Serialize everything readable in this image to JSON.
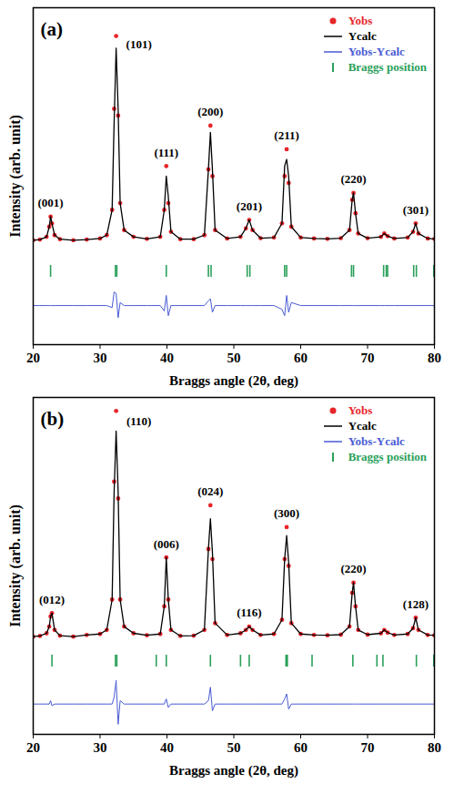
{
  "chart_data": [
    {
      "type": "line",
      "title": "(a)",
      "x_label": "Braggs angle (2θ, deg)",
      "y_label": "Intensity (arb. unit)",
      "xlim": [
        20,
        80
      ],
      "xticks": [
        20,
        30,
        40,
        50,
        60,
        70,
        80
      ],
      "ylim": [
        0,
        100
      ],
      "tick_labels": "x",
      "legend": "top-right",
      "x": [
        20,
        21,
        22,
        22.4,
        22.6,
        22.8,
        23.2,
        24,
        26,
        28,
        30,
        31,
        31.8,
        32.1,
        32.4,
        32.7,
        33,
        33.6,
        35,
        37,
        39,
        39.6,
        39.9,
        40.2,
        40.6,
        42,
        44,
        45.6,
        46.2,
        46.5,
        46.8,
        47.2,
        49,
        51,
        51.8,
        52.3,
        52.8,
        54,
        56,
        57.2,
        57.6,
        57.9,
        58.2,
        58.6,
        60,
        62,
        64,
        66,
        67.3,
        67.7,
        67.9,
        68.2,
        68.6,
        70,
        72,
        72.5,
        73,
        74,
        76,
        76.8,
        77.2,
        77.6,
        79,
        80
      ],
      "series": [
        {
          "name": "Yobs-Ycalc",
          "type": "line",
          "color": "#4a5bd4",
          "values": [
            11.6,
            11.6,
            11.6,
            11.6,
            11.6,
            11.6,
            11.6,
            11.6,
            11.6,
            11.6,
            11.6,
            11.6,
            11,
            15.6,
            15.2,
            8,
            12.5,
            11.6,
            11.6,
            11.6,
            11.6,
            10,
            14.6,
            8.6,
            11.6,
            11.6,
            11.6,
            11.6,
            13,
            13.6,
            9.6,
            11.6,
            11.6,
            11.6,
            11.6,
            11.6,
            11.6,
            11.6,
            11.6,
            10.5,
            8.6,
            14.6,
            9.6,
            12.5,
            11.6,
            11.6,
            11.6,
            11.6,
            11.6,
            11.6,
            11.6,
            11.6,
            11.6,
            11.6,
            11.6,
            11.6,
            11.6,
            11.6,
            11.6,
            11.6,
            11.6,
            11.6,
            11.6,
            11.6
          ]
        },
        {
          "name": "Yobs",
          "type": "scatter",
          "marker": "circle",
          "color": "#e8262a",
          "values": [
            31,
            31.2,
            32,
            35,
            38,
            36,
            32.5,
            31.3,
            31,
            31.2,
            31.5,
            32.5,
            40,
            70,
            91.6,
            68,
            42,
            34,
            32,
            31.4,
            32,
            40,
            53,
            42,
            33.5,
            31.3,
            31.3,
            32.5,
            52,
            65,
            50,
            34,
            31.5,
            32,
            34.5,
            37,
            34,
            31.6,
            31.8,
            36,
            50,
            58,
            48,
            35,
            31.8,
            31.5,
            31.4,
            31.6,
            34,
            43,
            45,
            39,
            33,
            31.6,
            32,
            33,
            32.2,
            31.5,
            31.8,
            33.5,
            36,
            33,
            31.5,
            31.4
          ]
        },
        {
          "name": "Ycalc",
          "type": "line",
          "color": "#000000",
          "values": [
            31,
            31.2,
            32,
            35,
            38,
            36,
            32.5,
            31.3,
            31,
            31.2,
            31.5,
            32.5,
            40,
            66,
            88,
            70,
            42,
            34,
            32,
            31.4,
            32,
            40,
            50,
            44,
            33.5,
            31.3,
            31.3,
            32.5,
            52,
            63,
            52,
            34,
            31.5,
            32,
            34.5,
            37,
            34,
            31.6,
            31.8,
            36,
            53,
            55,
            50,
            35,
            31.8,
            31.5,
            31.4,
            31.6,
            34,
            43,
            45,
            39,
            33,
            31.6,
            32,
            33,
            32.2,
            31.5,
            31.8,
            33.5,
            36,
            33,
            31.5,
            31.4
          ]
        },
        {
          "name": "Braggs position",
          "type": "tick",
          "color": "#2aa05a",
          "x": [
            22.6,
            32.3,
            32.5,
            39.9,
            46.2,
            46.6,
            52.0,
            52.4,
            57.6,
            57.9,
            67.6,
            67.9,
            72.4,
            72.8,
            73.0,
            76.9,
            77.3,
            79.9
          ]
        }
      ],
      "annotations": [
        {
          "text": "(001)",
          "x": 22.6,
          "y": 42
        },
        {
          "text": "(101)",
          "x": 35.8,
          "y": 89
        },
        {
          "text": "(111)",
          "x": 39.9,
          "y": 57
        },
        {
          "text": "(200)",
          "x": 46.5,
          "y": 69
        },
        {
          "text": "(201)",
          "x": 52.3,
          "y": 41
        },
        {
          "text": "(211)",
          "x": 57.9,
          "y": 62
        },
        {
          "text": "(220)",
          "x": 67.9,
          "y": 49
        },
        {
          "text": "(301)",
          "x": 77.2,
          "y": 40
        }
      ]
    },
    {
      "type": "line",
      "title": "(b)",
      "x_label": "Braggs angle (2θ, deg)",
      "y_label": "Intensity (arb. unit)",
      "xlim": [
        20,
        80
      ],
      "xticks": [
        20,
        30,
        40,
        50,
        60,
        70,
        80
      ],
      "ylim": [
        0,
        100
      ],
      "tick_labels": "x",
      "legend": "top-right",
      "x": [
        20,
        21,
        22,
        22.4,
        22.6,
        22.8,
        23.2,
        24,
        26,
        28,
        30,
        31,
        31.8,
        32.1,
        32.4,
        32.7,
        33,
        33.6,
        35,
        37,
        39,
        39.6,
        39.9,
        40.2,
        40.6,
        42,
        44,
        45.6,
        46.2,
        46.5,
        46.8,
        47.2,
        49,
        51,
        51.8,
        52.3,
        52.8,
        54,
        56,
        57.2,
        57.6,
        57.9,
        58.2,
        58.6,
        60,
        62,
        64,
        66,
        67.3,
        67.7,
        67.9,
        68.2,
        68.6,
        70,
        72,
        72.5,
        73,
        74,
        76,
        76.8,
        77.2,
        77.6,
        79,
        80
      ],
      "series": [
        {
          "name": "Yobs-Ycalc",
          "type": "line",
          "color": "#4a5bd4",
          "values": [
            9,
            9,
            9,
            9,
            10,
            8.5,
            9,
            9,
            9,
            9,
            9,
            9,
            9,
            11,
            16,
            3,
            10,
            9,
            9,
            9,
            9,
            9,
            10.5,
            8,
            9,
            9,
            9,
            9,
            10,
            14,
            7,
            9,
            9,
            9,
            9,
            9,
            9,
            9,
            9,
            9,
            10.5,
            12,
            7.5,
            9,
            9,
            9,
            9,
            9,
            9,
            9,
            9,
            9,
            9,
            9,
            9,
            9,
            9,
            9,
            9,
            9,
            9,
            9,
            9,
            9
          ]
        },
        {
          "name": "Yobs",
          "type": "scatter",
          "marker": "circle",
          "color": "#e8262a",
          "values": [
            29,
            29.2,
            30,
            32,
            35,
            36,
            31,
            29.3,
            29,
            29.5,
            29.8,
            31,
            40,
            75,
            96,
            70,
            40,
            32,
            30,
            29.4,
            29.8,
            38,
            52.5,
            40,
            31,
            29.2,
            29.3,
            31,
            55,
            68,
            52,
            33,
            29.5,
            30,
            31,
            32,
            31,
            29.5,
            29.8,
            34,
            52,
            61.5,
            50,
            33,
            29.8,
            29.5,
            29.4,
            29.6,
            32,
            42,
            45,
            38,
            31,
            29.6,
            30,
            31,
            30.2,
            29.5,
            29.8,
            31.5,
            34.6,
            31,
            29.5,
            29.4
          ]
        },
        {
          "name": "Ycalc",
          "type": "line",
          "color": "#000000",
          "values": [
            29,
            29.2,
            30,
            32,
            35,
            36,
            31,
            29.3,
            29,
            29.5,
            29.8,
            31,
            40,
            72,
            90,
            72,
            40,
            32,
            30,
            29.4,
            29.8,
            38,
            52.5,
            40,
            31,
            29.2,
            29.3,
            31,
            55,
            64,
            54,
            33,
            29.5,
            30,
            31,
            32,
            31,
            29.5,
            29.8,
            34,
            52,
            59,
            51,
            33,
            29.8,
            29.5,
            29.4,
            29.6,
            32,
            42,
            45,
            38,
            31,
            29.6,
            30,
            31,
            30.2,
            29.5,
            29.8,
            31.5,
            34.6,
            31,
            29.5,
            29.4
          ]
        },
        {
          "name": "Braggs position",
          "type": "tick",
          "color": "#2aa05a",
          "x": [
            22.8,
            32.3,
            32.5,
            38.4,
            39.9,
            46.5,
            51.0,
            52.3,
            57.8,
            58.0,
            61.7,
            67.8,
            71.4,
            72.3,
            77.3,
            79.9
          ]
        }
      ],
      "annotations": [
        {
          "text": "(012)",
          "x": 22.8,
          "y": 40
        },
        {
          "text": "(110)",
          "x": 35.8,
          "y": 93
        },
        {
          "text": "(006)",
          "x": 39.9,
          "y": 56.5
        },
        {
          "text": "(024)",
          "x": 46.5,
          "y": 72
        },
        {
          "text": "(116)",
          "x": 52.3,
          "y": 36
        },
        {
          "text": "(300)",
          "x": 57.9,
          "y": 65.5
        },
        {
          "text": "(220)",
          "x": 67.9,
          "y": 49
        },
        {
          "text": "(128)",
          "x": 77.2,
          "y": 38.6
        }
      ]
    }
  ]
}
